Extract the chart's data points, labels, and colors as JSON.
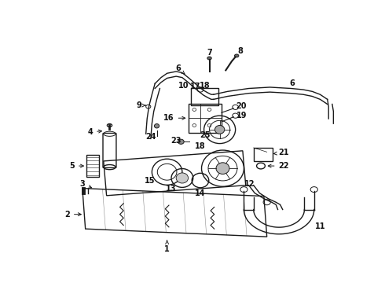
{
  "bg_color": "#ffffff",
  "line_color": "#1a1a1a",
  "label_color": "#111111",
  "fig_width": 4.9,
  "fig_height": 3.6,
  "dpi": 100,
  "lw_main": 1.0,
  "lw_thick": 1.8,
  "lw_thin": 0.6,
  "fs": 7.0
}
